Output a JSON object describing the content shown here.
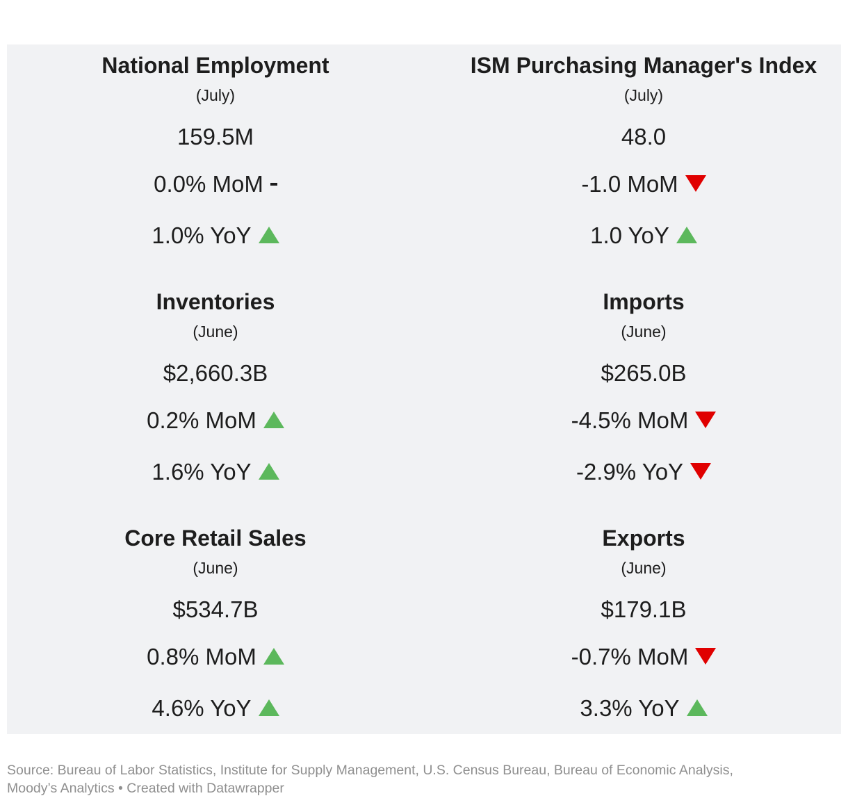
{
  "chart_data": {
    "type": "table",
    "indicators": [
      {
        "title": "National Employment",
        "period": "(July)",
        "value": "159.5M",
        "mom": "0.0% MoM",
        "mom_trend": "flat",
        "yoy": "1.0% YoY",
        "yoy_trend": "up"
      },
      {
        "title": "ISM Purchasing Manager's Index",
        "period": "(July)",
        "value": "48.0",
        "mom": "-1.0 MoM",
        "mom_trend": "down",
        "yoy": "1.0 YoY",
        "yoy_trend": "up"
      },
      {
        "title": "Inventories",
        "period": "(June)",
        "value": "$2,660.3B",
        "mom": "0.2% MoM",
        "mom_trend": "up",
        "yoy": "1.6% YoY",
        "yoy_trend": "up"
      },
      {
        "title": "Imports",
        "period": "(June)",
        "value": "$265.0B",
        "mom": "-4.5% MoM",
        "mom_trend": "down",
        "yoy": "-2.9% YoY",
        "yoy_trend": "down"
      },
      {
        "title": "Core Retail Sales",
        "period": "(June)",
        "value": "$534.7B",
        "mom": "0.8% MoM",
        "mom_trend": "up",
        "yoy": "4.6% YoY",
        "yoy_trend": "up"
      },
      {
        "title": "Exports",
        "period": "(June)",
        "value": "$179.1B",
        "mom": "-0.7% MoM",
        "mom_trend": "down",
        "yoy": "3.3% YoY",
        "yoy_trend": "up"
      }
    ]
  },
  "colors": {
    "up": "#5cb85c",
    "down": "#e00000",
    "panel_background": "#f1f2f4",
    "source_text": "#8f8f8f"
  },
  "footer": {
    "source_line1": "Source: Bureau of Labor Statistics, Institute for Supply Management, U.S. Census Bureau, Bureau of Economic Analysis,",
    "source_line2": "Moody’s Analytics • Created with Datawrapper"
  }
}
